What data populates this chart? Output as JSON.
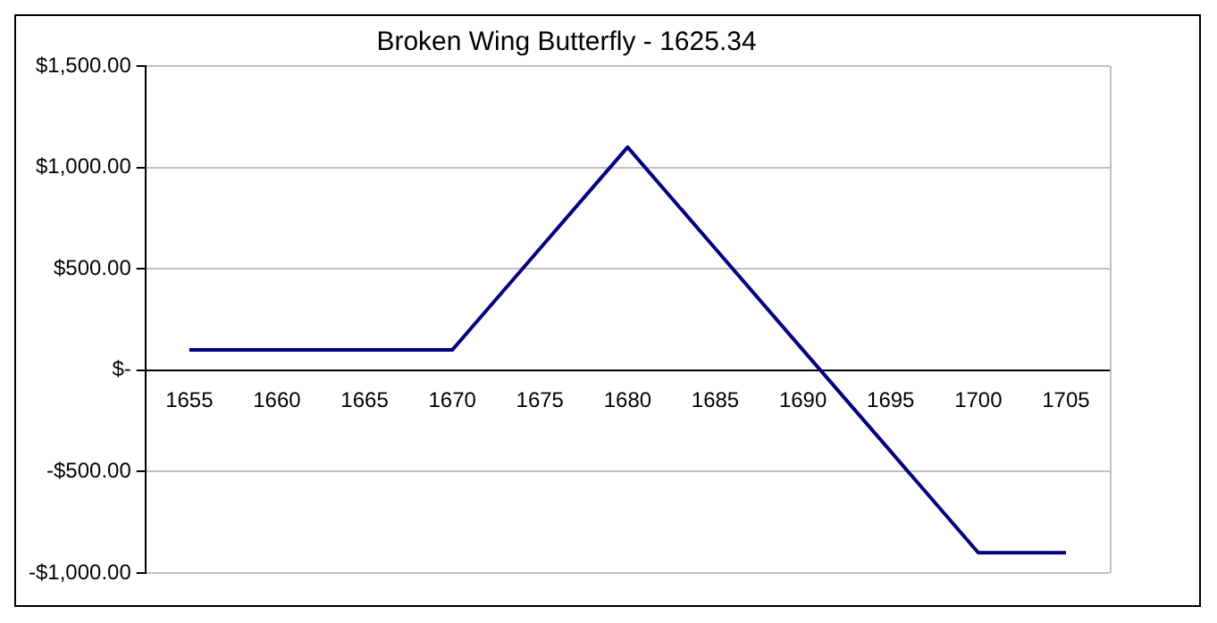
{
  "chart_data": {
    "type": "line",
    "title": "Broken Wing Butterfly - 1625.34",
    "categories": [
      "1655",
      "1660",
      "1665",
      "1670",
      "1675",
      "1680",
      "1685",
      "1690",
      "1695",
      "1700",
      "1705"
    ],
    "series": [
      {
        "color": "#000080",
        "values": [
          100,
          100,
          100,
          100,
          600,
          1100,
          600,
          100,
          -400,
          -900,
          -900
        ]
      }
    ],
    "ylim": [
      -1000,
      1500
    ],
    "yticks": [
      {
        "value": -1000,
        "label": "-$1,000.00"
      },
      {
        "value": -500,
        "label": "-$500.00"
      },
      {
        "value": 0,
        "label": "$-"
      },
      {
        "value": 500,
        "label": "$500.00"
      },
      {
        "value": 1000,
        "label": "$1,000.00"
      },
      {
        "value": 1500,
        "label": "$1,500.00"
      }
    ],
    "grid": "y",
    "legend": false,
    "marker": "none",
    "line_style": "solid"
  }
}
